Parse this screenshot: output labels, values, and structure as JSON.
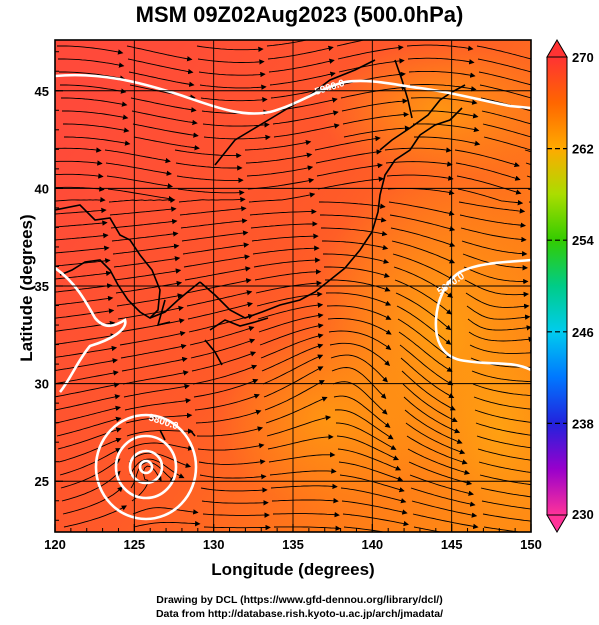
{
  "title": "MSM 09Z02Aug2023 (500.0hPa)",
  "xaxis": {
    "label": "Longitude (degrees)",
    "range": [
      120,
      150
    ],
    "ticks": [
      "120",
      "125",
      "130",
      "135",
      "140",
      "145",
      "150"
    ]
  },
  "yaxis": {
    "label": "Latitude  (degrees)",
    "range": [
      22.4,
      47.6
    ],
    "ticks": [
      "25",
      "30",
      "35",
      "40",
      "45"
    ]
  },
  "colorbar": {
    "range": [
      230,
      270
    ],
    "ticks": [
      "270",
      "262",
      "254",
      "246",
      "238",
      "230"
    ],
    "colors": [
      "#ff3399",
      "#cc00cc",
      "#3300cc",
      "#0055ff",
      "#00aaff",
      "#00dddd",
      "#00cc66",
      "#33cc00",
      "#aadd00",
      "#ffdd00",
      "#ff9900",
      "#ff6600",
      "#ff3333"
    ]
  },
  "contours": [
    {
      "label": "5900.0",
      "value": 5900.0
    },
    {
      "label": "5900.0",
      "value": 5900.0
    },
    {
      "label": "5800.0",
      "value": 5800.0
    }
  ],
  "credits": {
    "line1": "Drawing by DCL (https://www.gfd-dennou.org/library/dcl/)",
    "line2": "Data from http://database.rish.kyoto-u.ac.jp/arch/jmadata/"
  }
}
